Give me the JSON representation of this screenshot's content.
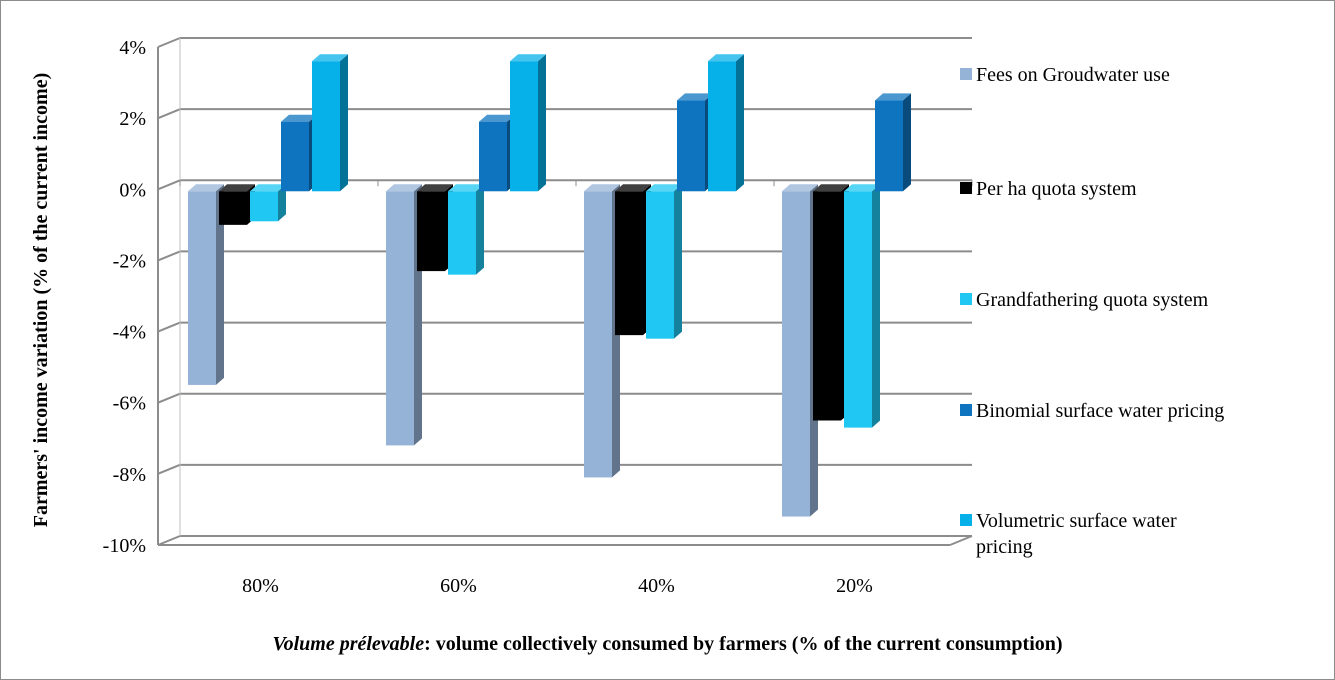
{
  "chart_data": {
    "type": "bar",
    "categories": [
      "80%",
      "60%",
      "40%",
      "20%"
    ],
    "series": [
      {
        "name": "Fees on Groudwater use",
        "values": [
          -5.5,
          -7.2,
          -8.1,
          -9.2
        ],
        "color": "#95b3d7"
      },
      {
        "name": "Per ha quota system",
        "values": [
          -1.0,
          -2.3,
          -4.1,
          -6.5
        ],
        "color": "#000000"
      },
      {
        "name": "Grandfathering quota system",
        "values": [
          -0.9,
          -2.4,
          -4.2,
          -6.7
        ],
        "color": "#1fc7f2"
      },
      {
        "name": "Binomial surface water pricing",
        "values": [
          1.9,
          1.9,
          2.5,
          2.5
        ],
        "color": "#0f74c0"
      },
      {
        "name": "Volumetric surface water pricing",
        "values": [
          3.6,
          3.6,
          3.6,
          0.0
        ],
        "color": "#06b0e8"
      }
    ],
    "y_ticks": [
      "4%",
      "2%",
      "0%",
      "-2%",
      "-4%",
      "-6%",
      "-8%",
      "-10%"
    ],
    "ylim": [
      -10,
      4
    ],
    "ylabel": "Farmers' income variation (%  of the current  income)",
    "xlabel_italic": "Volume prélevable",
    "xlabel_rest": ": volume collectively consumed by farmers (% of the current  consumption)",
    "legend_position": "right",
    "grid": true
  }
}
